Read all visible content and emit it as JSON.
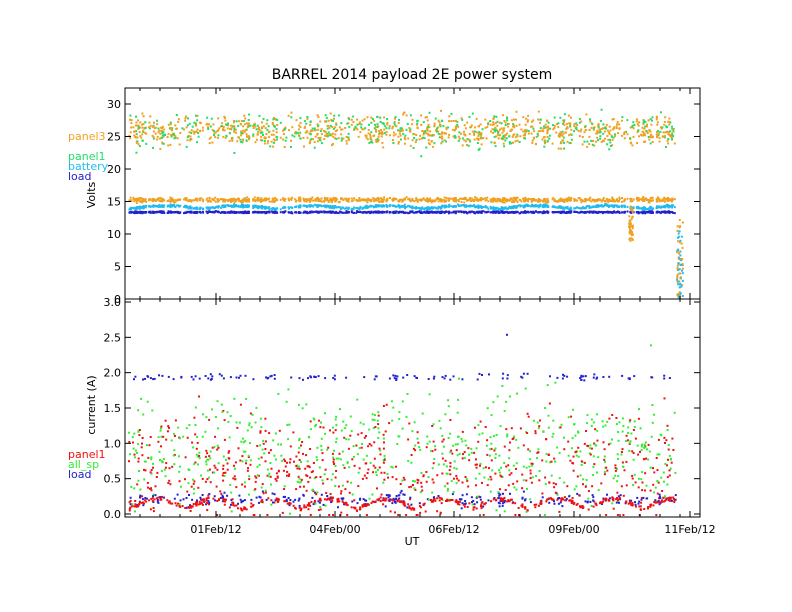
{
  "title": "BARREL 2014 payload 2E power system",
  "xlabel": "UT",
  "x_ticks": [
    "01Feb/12",
    "04Feb/00",
    "06Feb/12",
    "09Feb/00",
    "11Feb/12"
  ],
  "colors": {
    "panel3": "#f0a020",
    "panel1": "#22dd66",
    "battery": "#22bbee",
    "load": "#2222cc",
    "all_sp": "#33ee33",
    "current_panel1": "#ee1111"
  },
  "chart_data": [
    {
      "type": "scatter",
      "ylabel": "Volts",
      "ylim": [
        0,
        32
      ],
      "y_ticks": [
        "0",
        "5",
        "10",
        "15",
        "20",
        "25",
        "30"
      ],
      "legend": [
        "panel3",
        "panel1",
        "battery",
        "load"
      ],
      "legend_placement": "left, outside plot",
      "x_range_days": "approx. 29 Jan 2014 to 11 Feb 2014",
      "series": [
        {
          "name": "panel3",
          "typical_range": [
            22,
            30
          ],
          "description": "daylight plateau around 26 V, plus regulated band near 15.3 V"
        },
        {
          "name": "panel1",
          "typical_range": [
            21,
            30
          ]
        },
        {
          "name": "battery",
          "typical_range": [
            13.8,
            14.8
          ],
          "end_drop_to": 0
        },
        {
          "name": "load",
          "typical_range": [
            13.2,
            13.6
          ]
        }
      ]
    },
    {
      "type": "scatter",
      "ylabel": "current (A)",
      "ylim": [
        0,
        3.0
      ],
      "y_ticks": [
        "0.0",
        "0.5",
        "1.0",
        "1.5",
        "2.0",
        "2.5",
        "3.0"
      ],
      "legend": [
        "panel1",
        "all_sp",
        "load"
      ],
      "legend_placement": "left, outside plot",
      "series": [
        {
          "name": "panel1",
          "typical_range": [
            0,
            1.6
          ]
        },
        {
          "name": "all_sp",
          "typical_range": [
            0.3,
            2.1
          ]
        },
        {
          "name": "load",
          "typical_range": [
            0.15,
            0.35
          ],
          "spikes_near": 1.95,
          "max_outlier": 2.55
        }
      ]
    }
  ]
}
